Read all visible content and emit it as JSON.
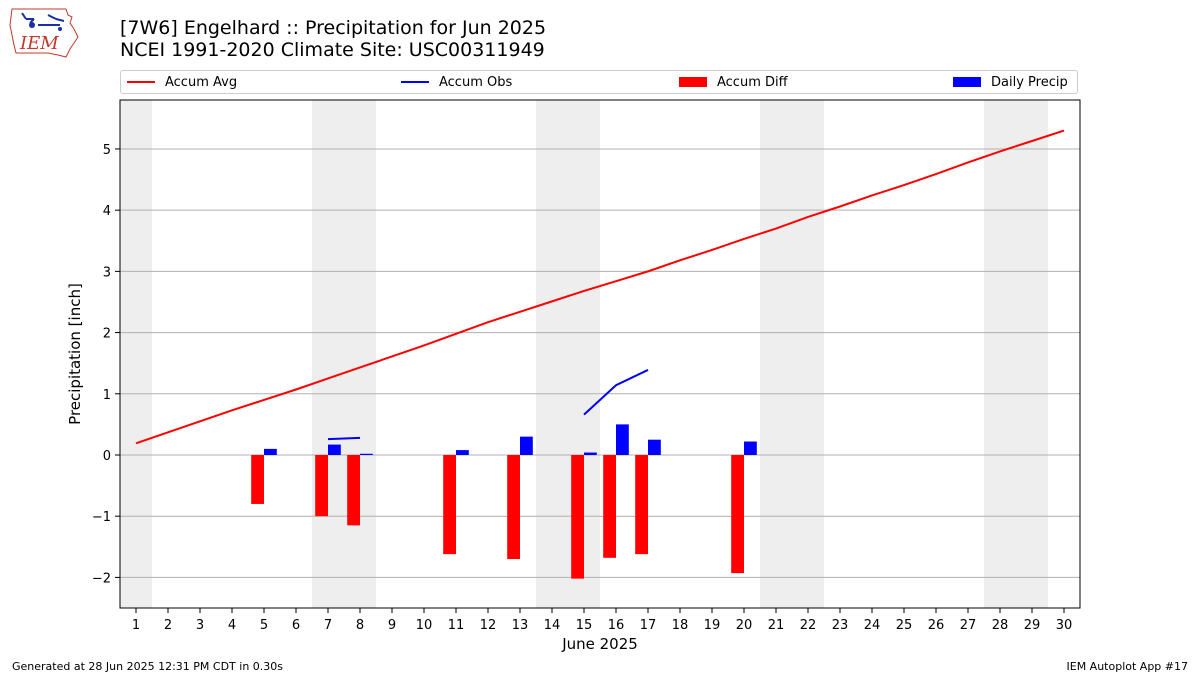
{
  "logo": {
    "text": "IEM"
  },
  "header": {
    "title_line1": "[7W6] Engelhard :: Precipitation for Jun 2025",
    "title_line2": "NCEI 1991-2020 Climate Site: USC00311949"
  },
  "legend": {
    "items": [
      {
        "label": "Accum Avg",
        "kind": "line",
        "color": "#ff0000"
      },
      {
        "label": "Accum Obs",
        "kind": "line",
        "color": "#0000ff"
      },
      {
        "label": "Accum Diff",
        "kind": "box",
        "color": "#ff0000"
      },
      {
        "label": "Daily Precip",
        "kind": "box",
        "color": "#0000ff"
      }
    ]
  },
  "footer": {
    "left": "Generated at 28 Jun 2025 12:31 PM CDT in 0.30s",
    "right": "IEM Autoplot App #17"
  },
  "chart_data": {
    "type": "bar",
    "xlabel": "June 2025",
    "ylabel": "Precipitation [inch]",
    "xlim": [
      0.5,
      30.5
    ],
    "ylim": [
      -2.5,
      5.8
    ],
    "x_ticks": [
      1,
      2,
      3,
      4,
      5,
      6,
      7,
      8,
      9,
      10,
      11,
      12,
      13,
      14,
      15,
      16,
      17,
      18,
      19,
      20,
      21,
      22,
      23,
      24,
      25,
      26,
      27,
      28,
      29,
      30
    ],
    "y_ticks": [
      -2,
      -1,
      0,
      1,
      2,
      3,
      4,
      5
    ],
    "grid": "horizontal",
    "weekend_shading": [
      [
        0.5,
        1.5
      ],
      [
        6.5,
        8.5
      ],
      [
        13.5,
        15.5
      ],
      [
        20.5,
        22.5
      ],
      [
        27.5,
        29.5
      ]
    ],
    "weekend_color": "#eeeeee",
    "accum_avg": {
      "name": "Accum Avg",
      "color": "#ff0000",
      "x": [
        1,
        2,
        3,
        4,
        5,
        6,
        7,
        8,
        9,
        10,
        11,
        12,
        13,
        14,
        15,
        16,
        17,
        18,
        19,
        20,
        21,
        22,
        23,
        24,
        25,
        26,
        27,
        28,
        29,
        30
      ],
      "y": [
        0.19,
        0.37,
        0.55,
        0.73,
        0.9,
        1.07,
        1.25,
        1.43,
        1.61,
        1.79,
        1.98,
        2.17,
        2.34,
        2.51,
        2.68,
        2.84,
        3.0,
        3.18,
        3.35,
        3.53,
        3.7,
        3.89,
        4.06,
        4.24,
        4.41,
        4.59,
        4.78,
        4.96,
        5.13,
        5.3
      ]
    },
    "accum_obs": {
      "name": "Accum Obs",
      "color": "#0000ff",
      "segments": [
        {
          "x": [
            7,
            8
          ],
          "y": [
            0.26,
            0.28
          ]
        },
        {
          "x": [
            15,
            16,
            17
          ],
          "y": [
            0.66,
            1.14,
            1.39
          ]
        }
      ]
    },
    "accum_diff": {
      "name": "Accum Diff",
      "color": "#ff0000",
      "x": [
        5,
        7,
        8,
        11,
        13,
        15,
        16,
        17,
        20
      ],
      "values": [
        -0.8,
        -1.0,
        -1.15,
        -1.62,
        -1.7,
        -2.02,
        -1.68,
        -1.62,
        -1.93
      ]
    },
    "daily_precip": {
      "name": "Daily Precip",
      "color": "#0000ff",
      "x": [
        5,
        7,
        8,
        11,
        13,
        15,
        16,
        17,
        20
      ],
      "values": [
        0.1,
        0.17,
        0.02,
        0.08,
        0.3,
        0.04,
        0.5,
        0.25,
        0.22
      ]
    }
  }
}
